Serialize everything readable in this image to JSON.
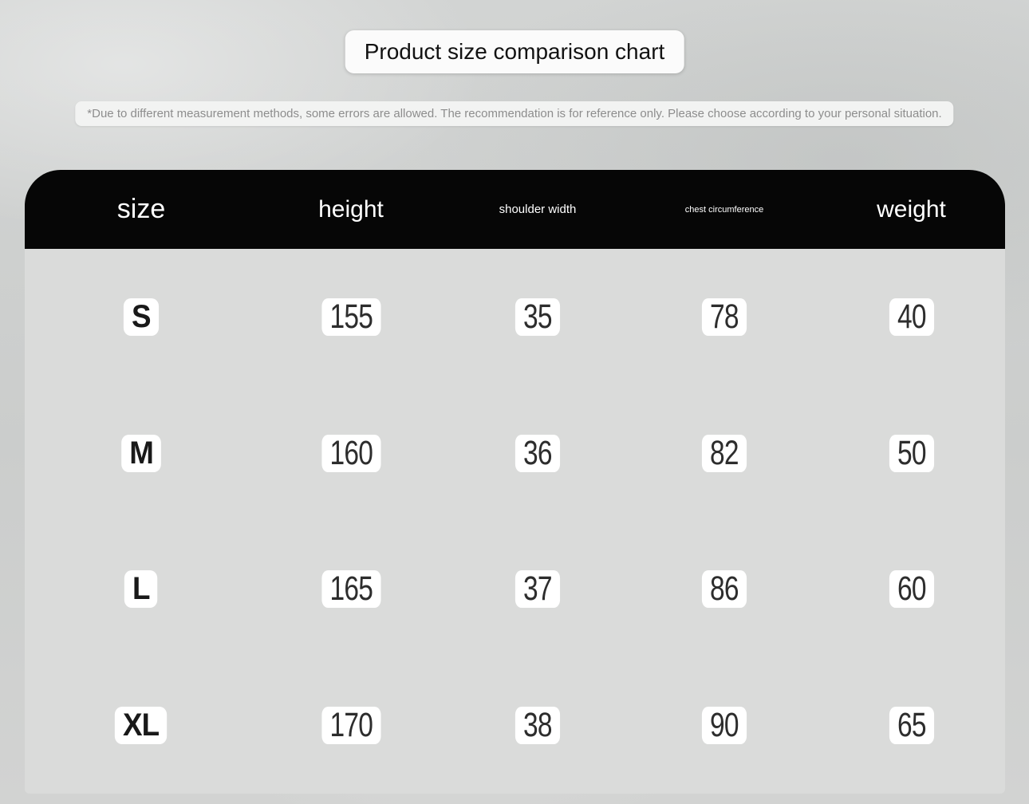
{
  "page": {
    "title": "Product size comparison chart",
    "disclaimer": "*Due to different measurement methods, some errors are allowed. The recommendation is for reference only. Please choose according to your personal situation."
  },
  "chart_data": {
    "type": "table",
    "title": "Product size comparison chart",
    "columns": [
      "size",
      "height",
      "shoulder width",
      "chest circumference",
      "weight"
    ],
    "rows": [
      [
        "S",
        155,
        35,
        78,
        40
      ],
      [
        "M",
        160,
        36,
        82,
        50
      ],
      [
        "L",
        165,
        37,
        86,
        60
      ],
      [
        "XL",
        170,
        38,
        90,
        65
      ]
    ]
  },
  "colors": {
    "page_bg": "#cfd1d0",
    "header_bg": "#060606",
    "header_text": "#ffffff",
    "table_body_bg": "#dadbda",
    "pill_bg": "#ffffff",
    "size_text": "#191919",
    "value_text": "#2d2d2d",
    "disclaimer_text": "#8d8d8d",
    "title_text": "#121212"
  }
}
